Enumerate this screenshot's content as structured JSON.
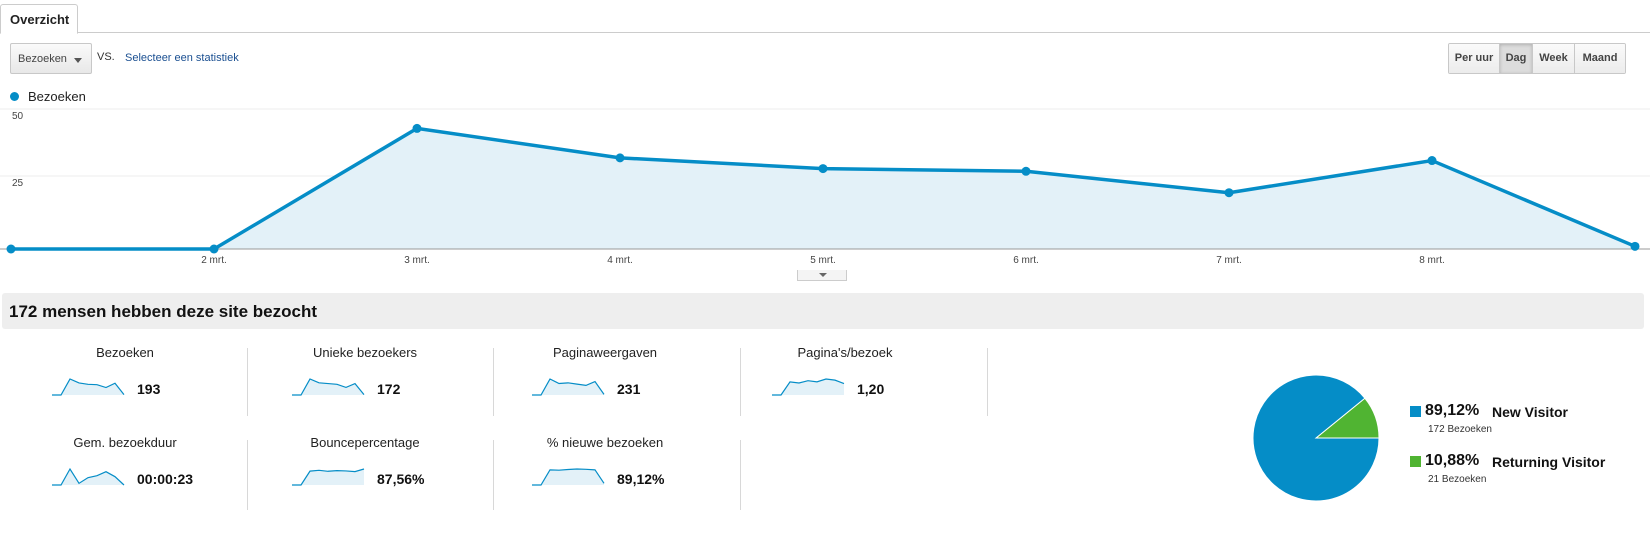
{
  "tabs": {
    "overview": "Overzicht"
  },
  "toolbar": {
    "metric_selected": "Bezoeken",
    "vs_label": "VS.",
    "compare_link": "Selecteer een statistiek",
    "periods": [
      "Per uur",
      "Dag",
      "Week",
      "Maand"
    ],
    "active_period": "Dag"
  },
  "colors": {
    "series": "#058dc7",
    "area_fill": "#e3f1f8",
    "new_visitor": "#058dc7",
    "returning_visitor": "#50b432"
  },
  "chart_data": {
    "type": "area",
    "series": [
      {
        "name": "Bezoeken",
        "values": [
          0,
          0,
          45,
          34,
          30,
          29,
          21,
          33,
          1
        ]
      }
    ],
    "x_tick_labels": [
      "2 mrt.",
      "3 mrt.",
      "4 mrt.",
      "5 mrt.",
      "6 mrt.",
      "7 mrt.",
      "8 mrt."
    ],
    "y_ticks": [
      50,
      25
    ],
    "ylim": [
      0,
      50
    ],
    "legend": "top-left",
    "grid": true
  },
  "summary": {
    "title": "172 mensen hebben deze site bezocht",
    "stats": [
      {
        "label": "Bezoeken",
        "value": "193",
        "spark": [
          0,
          0,
          45,
          34,
          30,
          29,
          21,
          33,
          1
        ]
      },
      {
        "label": "Unieke bezoekers",
        "value": "172",
        "spark": [
          0,
          0,
          42,
          32,
          30,
          28,
          20,
          30,
          1
        ]
      },
      {
        "label": "Paginaweergaven",
        "value": "231",
        "spark": [
          0,
          0,
          50,
          36,
          38,
          34,
          30,
          42,
          2
        ]
      },
      {
        "label": "Pagina's/bezoek",
        "value": "1,20",
        "spark": [
          0,
          0,
          1.15,
          1.05,
          1.25,
          1.15,
          1.4,
          1.3,
          1.0
        ]
      },
      {
        "label": "Gem. bezoekduur",
        "value": "00:00:23",
        "spark": [
          0,
          0,
          48,
          5,
          22,
          28,
          40,
          25,
          0
        ]
      },
      {
        "label": "Bouncepercentage",
        "value": "87,56%",
        "spark": [
          0,
          0,
          85,
          90,
          84,
          88,
          86,
          82,
          98
        ]
      },
      {
        "label": "% nieuwe bezoeken",
        "value": "89,12%",
        "spark": [
          0,
          0,
          90,
          88,
          92,
          95,
          93,
          90,
          10
        ]
      }
    ]
  },
  "visitor_pie": {
    "slices": [
      {
        "pct_label": "89,12%",
        "value": 89.12,
        "name": "New Visitor",
        "count": "172 Bezoeken"
      },
      {
        "pct_label": "10,88%",
        "value": 10.88,
        "name": "Returning Visitor",
        "count": "21 Bezoeken"
      }
    ]
  }
}
